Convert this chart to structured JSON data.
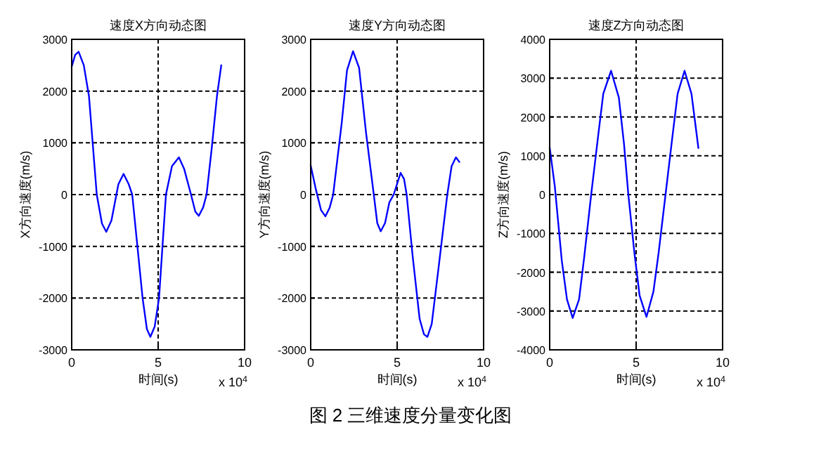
{
  "chart_data": [
    {
      "type": "line",
      "title": "速度X方向动态图",
      "xlabel": "时间(s)",
      "ylabel": "X方向速度(m/s)",
      "xlim": [
        0,
        10
      ],
      "xticks": [
        0,
        5,
        10
      ],
      "ylim": [
        -3000,
        3000
      ],
      "yticks": [
        -3000,
        -2000,
        -1000,
        0,
        1000,
        2000,
        3000
      ],
      "grid": true,
      "annotations": [
        "x 10$^{4}$",
        "图 2 三维速度分量变化图"
      ],
      "series": [
        {
          "color": "#0000ff",
          "x": [
            0,
            0.2,
            0.4,
            0.7,
            1.0,
            1.45,
            1.75,
            2.0,
            2.3,
            2.7,
            3.0,
            3.3,
            3.5,
            3.8,
            4.1,
            4.35,
            4.55,
            4.8,
            5.05,
            5.45,
            5.8,
            6.2,
            6.5,
            6.9,
            7.15,
            7.35,
            7.6,
            7.8,
            8.1,
            8.4,
            8.65
          ],
          "values": [
            2470,
            2700,
            2760,
            2500,
            1900,
            0,
            -560,
            -720,
            -500,
            200,
            400,
            200,
            0,
            -1000,
            -2000,
            -2600,
            -2750,
            -2550,
            -2000,
            0,
            550,
            720,
            500,
            0,
            -330,
            -410,
            -250,
            0,
            900,
            1900,
            2500
          ]
        }
      ]
    },
    {
      "type": "line",
      "title": "速度Y方向动态图",
      "xlabel": "时间(s)",
      "ylabel": "Y方向速度(m/s)",
      "xlim": [
        0,
        10
      ],
      "xticks": [
        0,
        5,
        10
      ],
      "ylim": [
        -3000,
        3000
      ],
      "yticks": [
        -3000,
        -2000,
        -1000,
        0,
        1000,
        2000,
        3000
      ],
      "grid": true,
      "annotations": [
        "x 10$^{4}$"
      ],
      "series": [
        {
          "color": "#0000ff",
          "x": [
            0,
            0.3,
            0.6,
            0.85,
            1.1,
            1.3,
            1.8,
            2.1,
            2.45,
            2.8,
            3.2,
            3.65,
            3.85,
            4.05,
            4.3,
            4.55,
            4.8,
            5.2,
            5.4,
            5.55,
            5.9,
            6.3,
            6.55,
            6.75,
            7.0,
            7.4,
            7.9,
            8.15,
            8.4,
            8.6
          ],
          "values": [
            564,
            100,
            -300,
            -420,
            -250,
            0,
            1400,
            2400,
            2770,
            2450,
            1200,
            0,
            -550,
            -710,
            -550,
            -150,
            0,
            420,
            300,
            0,
            -1200,
            -2400,
            -2700,
            -2750,
            -2500,
            -1400,
            0,
            550,
            720,
            630
          ]
        }
      ]
    },
    {
      "type": "line",
      "title": "速度Z方向动态图",
      "xlabel": "时间(s)",
      "ylabel": "Z方向速度(m/s)",
      "xlim": [
        0,
        10
      ],
      "xticks": [
        0,
        5,
        10
      ],
      "ylim": [
        -4000,
        4000
      ],
      "yticks": [
        -4000,
        -3000,
        -2000,
        -1000,
        0,
        1000,
        2000,
        3000,
        4000
      ],
      "grid": true,
      "annotations": [
        "x 10$^{4}$"
      ],
      "series": [
        {
          "color": "#0000ff",
          "x": [
            0,
            0.3,
            0.7,
            1.0,
            1.33,
            1.7,
            2.0,
            2.4,
            2.8,
            3.1,
            3.55,
            4.0,
            4.3,
            4.55,
            4.9,
            5.2,
            5.6,
            6.0,
            6.3,
            6.7,
            7.1,
            7.4,
            7.8,
            8.2,
            8.4,
            8.6
          ],
          "values": [
            1215,
            200,
            -1700,
            -2700,
            -3180,
            -2700,
            -1600,
            0,
            1500,
            2600,
            3190,
            2500,
            1300,
            0,
            -1500,
            -2600,
            -3150,
            -2500,
            -1500,
            0,
            1500,
            2600,
            3190,
            2600,
            1900,
            1200
          ]
        }
      ]
    }
  ]
}
